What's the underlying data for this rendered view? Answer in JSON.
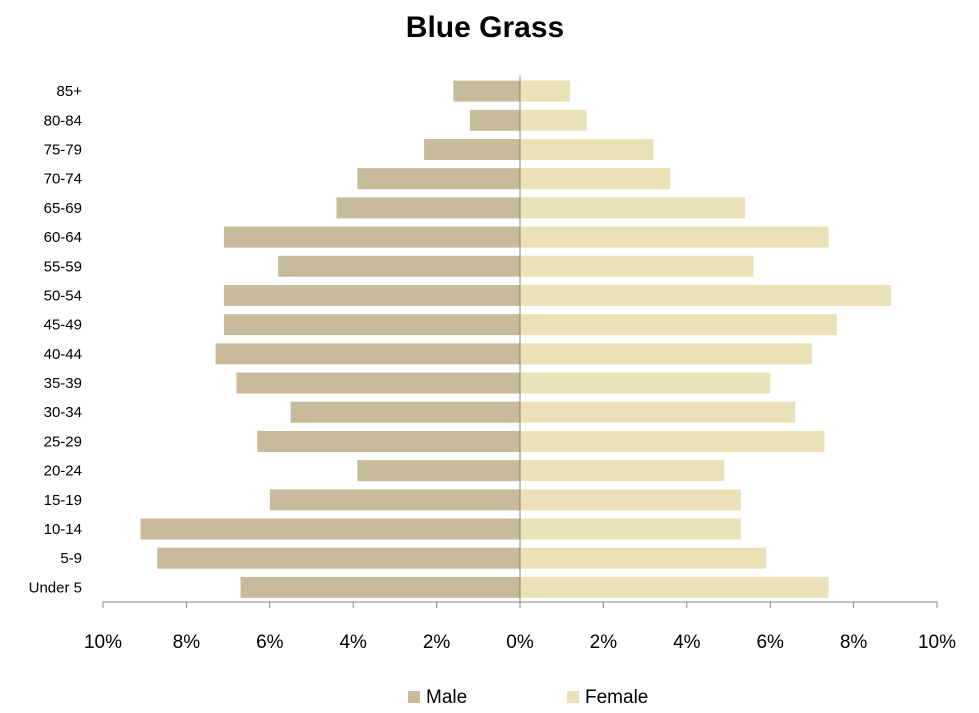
{
  "chart_data": {
    "type": "bar",
    "orientation": "horizontal",
    "layout": "population-pyramid",
    "title": "Blue Grass",
    "categories": [
      "Under 5",
      "5-9",
      "10-14",
      "15-19",
      "20-24",
      "25-29",
      "30-34",
      "35-39",
      "40-44",
      "45-49",
      "50-54",
      "55-59",
      "60-64",
      "65-69",
      "70-74",
      "75-79",
      "80-84",
      "85+"
    ],
    "series": [
      {
        "name": "Male",
        "side": "left",
        "color": "#c8bb9b",
        "values": [
          6.7,
          8.7,
          9.1,
          6.0,
          3.9,
          6.3,
          5.5,
          6.8,
          7.3,
          7.1,
          7.1,
          5.8,
          7.1,
          4.4,
          3.9,
          2.3,
          1.2,
          1.6
        ]
      },
      {
        "name": "Female",
        "side": "right",
        "color": "#ebe1b7",
        "values": [
          7.4,
          5.9,
          5.3,
          5.3,
          4.9,
          7.3,
          6.6,
          6.0,
          7.0,
          7.6,
          8.9,
          5.6,
          7.4,
          5.4,
          3.6,
          3.2,
          1.6,
          1.2
        ]
      }
    ],
    "x_ticks": [
      "10%",
      "8%",
      "6%",
      "4%",
      "2%",
      "0%",
      "2%",
      "4%",
      "6%",
      "8%",
      "10%"
    ],
    "xlim": [
      -10,
      10
    ],
    "unit": "%",
    "grid": false,
    "legend_position": "bottom"
  }
}
